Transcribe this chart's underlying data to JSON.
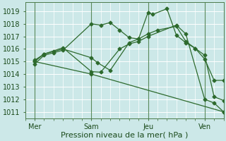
{
  "bg_color": "#cce8e8",
  "grid_color": "#ffffff",
  "line_color": "#2d6a2d",
  "marker_color": "#2d6a2d",
  "xlabel": "Pression niveau de la mer( hPa )",
  "xtick_labels": [
    "Mer",
    "Sam",
    "Jeu",
    "Ven"
  ],
  "xtick_positions": [
    0,
    36,
    72,
    108
  ],
  "xlim": [
    -6,
    120
  ],
  "ylim": [
    1010.5,
    1019.7
  ],
  "yticks": [
    1011,
    1012,
    1013,
    1014,
    1015,
    1016,
    1017,
    1018,
    1019
  ],
  "series": [
    {
      "x": [
        0,
        6,
        12,
        18,
        36,
        42,
        48,
        54,
        60,
        66,
        72,
        75,
        84,
        90,
        96,
        102,
        108,
        114,
        120
      ],
      "y": [
        1014.8,
        1015.5,
        1015.7,
        1015.9,
        1018.0,
        1017.9,
        1018.1,
        1017.5,
        1016.9,
        1016.8,
        1018.9,
        1018.75,
        1019.2,
        1017.1,
        1016.5,
        1016.05,
        1015.2,
        1013.5,
        1013.5
      ]
    },
    {
      "x": [
        0,
        6,
        12,
        18,
        36,
        40,
        48,
        60,
        66,
        72,
        78,
        90,
        96,
        102,
        108,
        114,
        120
      ],
      "y": [
        1015.0,
        1015.6,
        1015.8,
        1016.0,
        1015.3,
        1014.9,
        1014.3,
        1016.5,
        1016.8,
        1017.2,
        1017.5,
        1017.8,
        1016.6,
        1016.05,
        1015.5,
        1012.2,
        1011.9
      ]
    },
    {
      "x": [
        0,
        6,
        18,
        36,
        42,
        54,
        60,
        66,
        72,
        90,
        96,
        108,
        114,
        120
      ],
      "y": [
        1015.1,
        1015.6,
        1016.1,
        1014.2,
        1014.15,
        1016.0,
        1016.4,
        1016.6,
        1017.0,
        1017.9,
        1017.2,
        1012.0,
        1011.7,
        1011.0
      ]
    },
    {
      "x": [
        0,
        36,
        120
      ],
      "y": [
        1015.0,
        1014.0,
        1011.0
      ]
    }
  ],
  "vlines_x": [
    0,
    36,
    72,
    108
  ],
  "figsize": [
    3.2,
    2.0
  ],
  "dpi": 100,
  "xlabel_fontsize": 8,
  "tick_fontsize": 7,
  "tick_color": "#1a4a1a",
  "spine_color": "#4a7a4a",
  "vline_color": "#5a8a5a",
  "markersize": 2.5,
  "linewidth": 0.9
}
